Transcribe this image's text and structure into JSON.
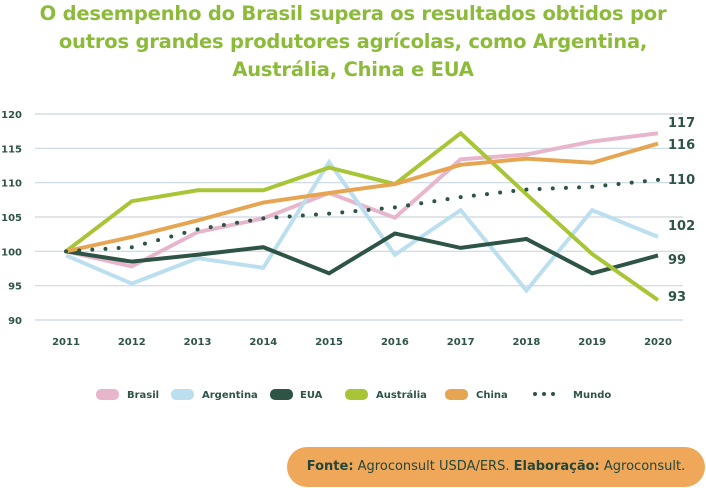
{
  "chart_data": {
    "type": "line",
    "title": "O desempenho do Brasil supera os resultados obtidos por outros grandes produtores agrícolas, como Argentina, Austrália, China e EUA",
    "title_lines": [
      "O desempenho do Brasil supera os resultados obtidos por",
      "outros grandes produtores agrícolas, como Argentina,",
      "Austrália, China e EUA"
    ],
    "xlabel": "",
    "ylabel": "",
    "x": [
      "2011",
      "2012",
      "2013",
      "2014",
      "2015",
      "2016",
      "2017",
      "2018",
      "2019",
      "2020"
    ],
    "ylim": [
      90,
      120
    ],
    "yticks": [
      "90",
      "95",
      "100",
      "105",
      "110",
      "115",
      "120"
    ],
    "grid": true,
    "legend_position": "bottom",
    "series": [
      {
        "name": "Brasil",
        "color": "#e8b6cc",
        "style": "solid",
        "values": [
          100,
          97.8,
          102.8,
          104.8,
          108.5,
          104.9,
          113.4,
          114.1,
          116.0,
          117.2
        ]
      },
      {
        "name": "Argentina",
        "color": "#bcdff0",
        "style": "solid",
        "values": [
          99.4,
          95.3,
          99.0,
          97.6,
          113.0,
          99.5,
          106.0,
          94.3,
          106.0,
          102.1
        ]
      },
      {
        "name": "EUA",
        "color": "#2e5446",
        "style": "solid",
        "values": [
          100,
          98.5,
          99.5,
          100.6,
          96.8,
          102.6,
          100.5,
          101.8,
          96.8,
          99.4
        ]
      },
      {
        "name": "Austrália",
        "color": "#a8c536",
        "style": "solid",
        "values": [
          100,
          107.3,
          108.9,
          108.9,
          112.2,
          109.8,
          117.2,
          108.3,
          99.6,
          92.9
        ]
      },
      {
        "name": "China",
        "color": "#e5a552",
        "style": "solid",
        "values": [
          100,
          102.1,
          104.5,
          107.1,
          108.5,
          109.8,
          112.6,
          113.5,
          112.9,
          115.7
        ]
      },
      {
        "name": "Mundo",
        "color": "#2e5446",
        "style": "dotted",
        "values": [
          100,
          100.6,
          103.2,
          104.8,
          105.5,
          106.4,
          107.9,
          109.0,
          109.4,
          110.4
        ]
      }
    ],
    "end_labels": [
      "117",
      "116",
      "110",
      "102",
      "99",
      "93"
    ]
  },
  "footer": {
    "source_label": "Fonte:",
    "source_text": " Agroconsult USDA/ERS. ",
    "elab_label": "Elaboração:",
    "elab_text": " Agroconsult."
  }
}
